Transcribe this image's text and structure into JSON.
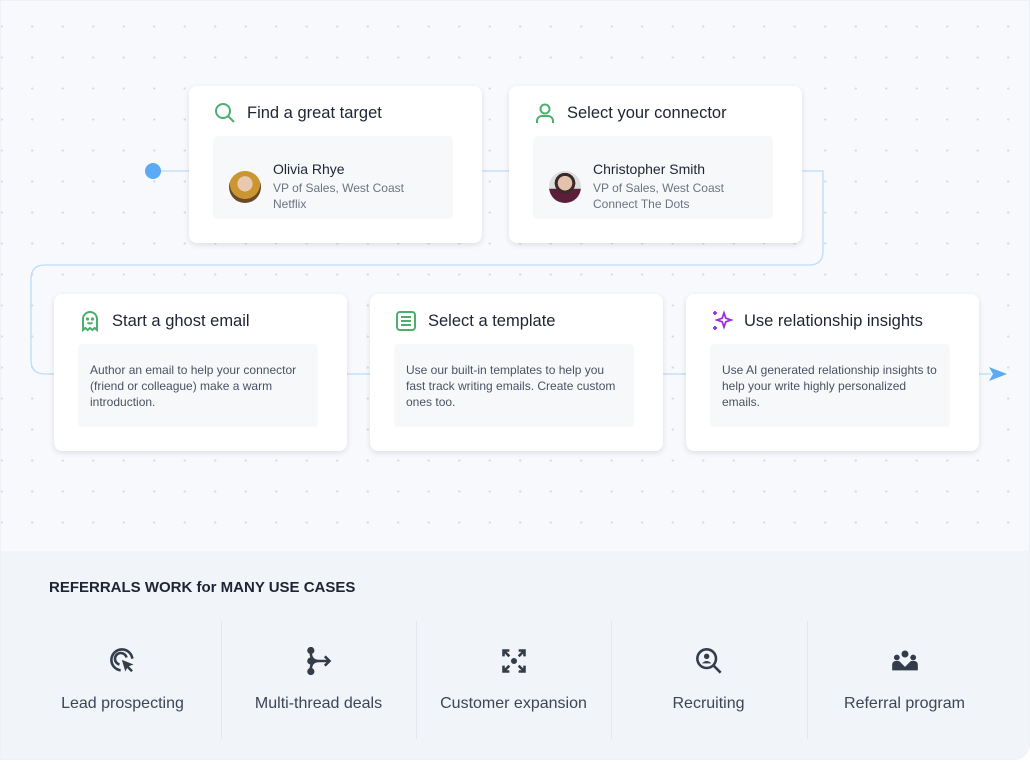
{
  "steps": [
    {
      "title": "Find a great target",
      "icon": "search-icon",
      "person": {
        "name": "Olivia Rhye",
        "title": "VP of Sales, West Coast",
        "company": "Netflix"
      }
    },
    {
      "title": "Select your connector",
      "icon": "user-icon",
      "person": {
        "name": "Christopher Smith",
        "title": "VP of Sales, West Coast",
        "company": "Connect The Dots"
      }
    },
    {
      "title": "Start a ghost email",
      "icon": "ghost-icon",
      "description": "Author an email to help your connector (friend or colleague) make a warm introduction."
    },
    {
      "title": "Select a template",
      "icon": "template-icon",
      "description": "Use our built-in templates to help you fast track writing emails. Create custom ones too."
    },
    {
      "title": "Use relationship insights",
      "icon": "sparkles-icon",
      "description": "Use AI generated relationship insights to help your write highly personalized emails."
    }
  ],
  "use_cases": {
    "title": "REFERRALS WORK for MANY USE CASES",
    "items": [
      {
        "label": "Lead prospecting",
        "icon": "target-cursor-icon"
      },
      {
        "label": "Multi-thread deals",
        "icon": "branch-arrow-icon"
      },
      {
        "label": "Customer expansion",
        "icon": "expand-icon"
      },
      {
        "label": "Recruiting",
        "icon": "search-person-icon"
      },
      {
        "label": "Referral program",
        "icon": "group-icon"
      }
    ]
  },
  "colors": {
    "green": "#4caf6e",
    "purple": "#9b2fe0",
    "line": "#bcdcfb",
    "accent": "#5aaaf5",
    "dark": "#343c4a"
  }
}
